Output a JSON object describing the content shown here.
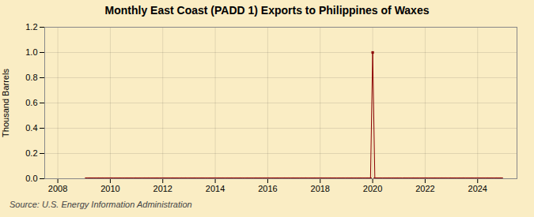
{
  "chart_data": {
    "type": "line",
    "title": "Monthly East Coast (PADD 1) Exports to Philippines of Waxes",
    "ylabel": "Thousand Barrels",
    "annotations": [
      "Source: U.S. Energy Information Administration"
    ],
    "color": "#8b0000",
    "marker": "square",
    "grid": true,
    "xlim": [
      2007.5,
      2025.5
    ],
    "xticks": [
      2008,
      2010,
      2012,
      2014,
      2016,
      2018,
      2020,
      2022,
      2024
    ],
    "ylim": [
      0.0,
      1.2
    ],
    "yticks": [
      {
        "value": 0,
        "label": "0.0"
      },
      0.2,
      0.4,
      0.6,
      0.8,
      {
        "value": 1,
        "label": "1.0"
      },
      1.2
    ],
    "x": [
      2009.083,
      2009.167,
      2009.25,
      2009.333,
      2009.417,
      2009.5,
      2009.583,
      2009.667,
      2009.75,
      2009.833,
      2009.917,
      2010.0,
      2010.083,
      2010.167,
      2010.25,
      2010.333,
      2010.417,
      2010.5,
      2010.583,
      2010.667,
      2010.75,
      2010.833,
      2010.917,
      2011.0,
      2011.083,
      2011.167,
      2011.25,
      2011.333,
      2011.417,
      2011.5,
      2011.583,
      2011.667,
      2011.75,
      2011.833,
      2011.917,
      2012.0,
      2012.083,
      2012.167,
      2012.25,
      2012.333,
      2012.417,
      2012.5,
      2012.583,
      2012.667,
      2012.75,
      2012.833,
      2012.917,
      2013.0,
      2013.083,
      2013.167,
      2013.25,
      2013.333,
      2013.417,
      2013.5,
      2013.583,
      2013.667,
      2013.75,
      2013.833,
      2013.917,
      2014.0,
      2014.083,
      2014.167,
      2014.25,
      2014.333,
      2014.417,
      2014.5,
      2014.583,
      2014.667,
      2014.75,
      2014.833,
      2014.917,
      2015.0,
      2015.083,
      2015.167,
      2015.25,
      2015.333,
      2015.417,
      2015.5,
      2015.583,
      2015.667,
      2015.75,
      2015.833,
      2015.917,
      2016.0,
      2016.083,
      2016.167,
      2016.25,
      2016.333,
      2016.417,
      2016.5,
      2016.583,
      2016.667,
      2016.75,
      2016.833,
      2016.917,
      2017.0,
      2017.083,
      2017.167,
      2017.25,
      2017.333,
      2017.417,
      2017.5,
      2017.583,
      2017.667,
      2017.75,
      2017.833,
      2017.917,
      2018.0,
      2018.083,
      2018.167,
      2018.25,
      2018.333,
      2018.417,
      2018.5,
      2018.583,
      2018.667,
      2018.75,
      2018.833,
      2018.917,
      2019.0,
      2019.083,
      2019.167,
      2019.25,
      2019.333,
      2019.417,
      2019.5,
      2019.583,
      2019.667,
      2019.75,
      2019.833,
      2019.917,
      2020.0,
      2020.083,
      2020.167,
      2020.25,
      2020.333,
      2020.417,
      2020.5,
      2020.583,
      2020.667,
      2020.75,
      2020.833,
      2020.917,
      2021.0,
      2021.083,
      2021.167,
      2021.25,
      2021.333,
      2021.417,
      2021.5,
      2021.583,
      2021.667,
      2021.75,
      2021.833,
      2021.917,
      2022.0,
      2022.083,
      2022.167,
      2022.25,
      2022.333,
      2022.417,
      2022.5,
      2022.583,
      2022.667,
      2022.75,
      2022.833,
      2022.917,
      2023.0,
      2023.083,
      2023.167,
      2023.25,
      2023.333,
      2023.417,
      2023.5,
      2023.583,
      2023.667,
      2023.75,
      2023.833,
      2023.917,
      2024.0,
      2024.083,
      2024.167,
      2024.25,
      2024.333,
      2024.417,
      2024.5,
      2024.583,
      2024.667,
      2024.75,
      2024.833,
      2024.917
    ],
    "values": [
      0,
      0,
      0,
      0,
      0,
      0,
      0,
      0,
      0,
      0,
      0,
      0,
      0,
      0,
      0,
      0,
      0,
      0,
      0,
      0,
      0,
      0,
      0,
      0,
      0,
      0,
      0,
      0,
      0,
      0,
      0,
      0,
      0,
      0,
      0,
      0,
      0,
      0,
      0,
      0,
      0,
      0,
      0,
      0,
      0,
      0,
      0,
      0,
      0,
      0,
      0,
      0,
      0,
      0,
      0,
      0,
      0,
      0,
      0,
      0,
      0,
      0,
      0,
      0,
      0,
      0,
      0,
      0,
      0,
      0,
      0,
      0,
      0,
      0,
      0,
      0,
      0,
      0,
      0,
      0,
      0,
      0,
      0,
      0,
      0,
      0,
      0,
      0,
      0,
      0,
      0,
      0,
      0,
      0,
      0,
      0,
      0,
      0,
      0,
      0,
      0,
      0,
      0,
      0,
      0,
      0,
      0,
      0,
      0,
      0,
      0,
      0,
      0,
      0,
      0,
      0,
      0,
      0,
      0,
      0,
      0,
      0,
      0,
      0,
      0,
      0,
      0,
      0,
      0,
      0,
      0,
      1.0,
      0,
      0,
      0,
      0,
      0,
      0,
      0,
      0,
      0,
      0,
      0,
      0,
      0,
      0,
      0,
      0,
      0,
      0,
      0,
      0,
      0,
      0,
      0,
      0,
      0,
      0,
      0,
      0,
      0,
      0,
      0,
      0,
      0,
      0,
      0,
      0,
      0,
      0,
      0,
      0,
      0,
      0,
      0,
      0,
      0,
      0,
      0,
      0,
      0,
      0,
      0,
      0,
      0,
      0,
      0,
      0,
      0,
      0,
      0
    ]
  }
}
